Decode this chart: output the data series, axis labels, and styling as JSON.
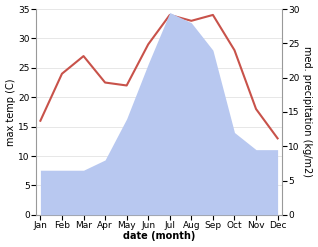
{
  "months": [
    "Jan",
    "Feb",
    "Mar",
    "Apr",
    "May",
    "Jun",
    "Jul",
    "Aug",
    "Sep",
    "Oct",
    "Nov",
    "Dec"
  ],
  "temperature": [
    16.0,
    24.0,
    27.0,
    22.5,
    22.0,
    29.0,
    34.0,
    33.0,
    34.0,
    28.0,
    18.0,
    13.0
  ],
  "precipitation": [
    6.5,
    6.5,
    6.5,
    8.0,
    14.0,
    22.0,
    29.5,
    28.0,
    24.0,
    12.0,
    9.5,
    9.5
  ],
  "temp_color": "#c8524a",
  "precip_color_fill": "#b8c8f0",
  "temp_ylim": [
    0,
    35
  ],
  "precip_ylim": [
    0,
    30
  ],
  "temp_yticks": [
    0,
    5,
    10,
    15,
    20,
    25,
    30,
    35
  ],
  "precip_yticks": [
    0,
    5,
    10,
    15,
    20,
    25,
    30
  ],
  "xlabel": "date (month)",
  "ylabel_left": "max temp (C)",
  "ylabel_right": "med. precipitation (kg/m2)",
  "tick_fontsize": 6.5,
  "label_fontsize": 7,
  "background_color": "#ffffff"
}
